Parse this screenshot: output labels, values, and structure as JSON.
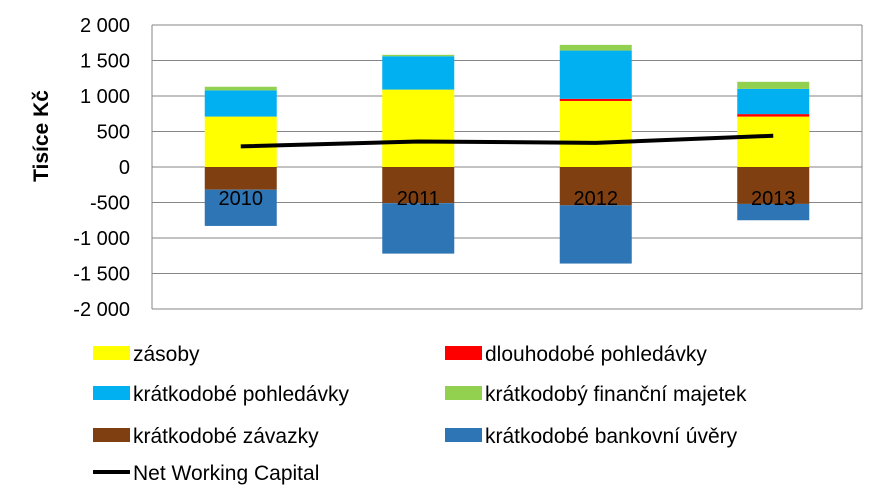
{
  "chart_data": {
    "type": "bar",
    "stacked": true,
    "ylabel": "Tisíce Kč",
    "ylim": [
      -2000,
      2000
    ],
    "yticks": [
      {
        "v": 2000,
        "label": "2 000"
      },
      {
        "v": 1500,
        "label": "1 500"
      },
      {
        "v": 1000,
        "label": "1 000"
      },
      {
        "v": 500,
        "label": "500"
      },
      {
        "v": 0,
        "label": "0"
      },
      {
        "v": -500,
        "label": "-500"
      },
      {
        "v": -1000,
        "label": "-1 000"
      },
      {
        "v": -1500,
        "label": "-1 500"
      },
      {
        "v": -2000,
        "label": "-2 000"
      }
    ],
    "grid": true,
    "legend_position": "bottom",
    "categories": [
      "2010",
      "2011",
      "2012",
      "2013"
    ],
    "series": [
      {
        "name": "zásoby",
        "color": "#FFFF00",
        "values": [
          710,
          1090,
          930,
          710
        ]
      },
      {
        "name": "dlouhodobé pohledávky",
        "color": "#FF0000",
        "values": [
          0,
          0,
          30,
          35
        ]
      },
      {
        "name": "krátkodobé pohledávky",
        "color": "#00B0F0",
        "values": [
          370,
          470,
          680,
          355
        ]
      },
      {
        "name": "krátkodobý finanční majetek",
        "color": "#92D050",
        "values": [
          50,
          20,
          80,
          100
        ]
      },
      {
        "name": "krátkodobé závazky",
        "color": "#7F3F10",
        "values": [
          -320,
          -510,
          -540,
          -520
        ]
      },
      {
        "name": "krátkodobé bankovní úvěry",
        "color": "#2E75B6",
        "values": [
          -510,
          -710,
          -820,
          -230
        ]
      }
    ],
    "line": {
      "name": "Net Working Capital",
      "color": "#000000",
      "values": [
        290,
        360,
        340,
        440
      ]
    }
  }
}
